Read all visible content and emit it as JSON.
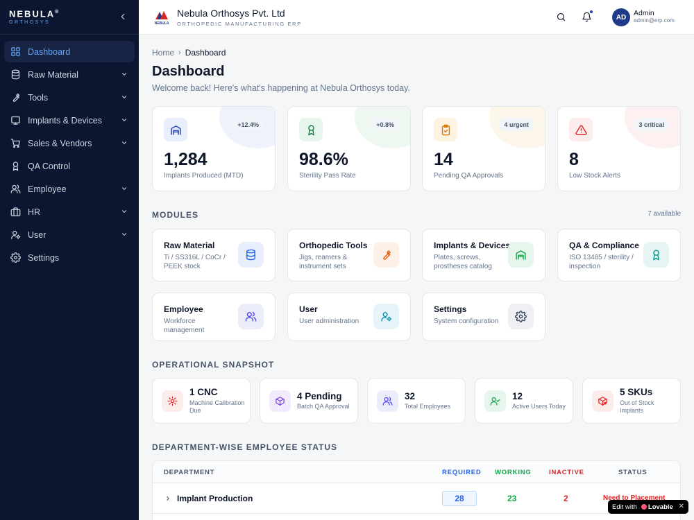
{
  "brand": {
    "name": "NEBULA",
    "mark": "®",
    "sub": "ORTHOSYS"
  },
  "sidebar": {
    "items": [
      {
        "label": "Dashboard",
        "icon": "dashboard-icon",
        "active": true,
        "expandable": false
      },
      {
        "label": "Raw Material",
        "icon": "database-icon",
        "expandable": true
      },
      {
        "label": "Tools",
        "icon": "wrench-icon",
        "expandable": true
      },
      {
        "label": "Implants & Devices",
        "icon": "device-icon",
        "expandable": true
      },
      {
        "label": "Sales & Vendors",
        "icon": "cart-icon",
        "expandable": true
      },
      {
        "label": "QA Control",
        "icon": "award-icon",
        "expandable": false
      },
      {
        "label": "Employee",
        "icon": "users-icon",
        "expandable": true
      },
      {
        "label": "HR",
        "icon": "briefcase-icon",
        "expandable": true
      },
      {
        "label": "User",
        "icon": "user-gear-icon",
        "expandable": true
      },
      {
        "label": "Settings",
        "icon": "gear-icon",
        "expandable": false
      }
    ]
  },
  "header": {
    "company": "Nebula Orthosys Pvt. Ltd",
    "company_sub": "ORTHOPEDIC MANUFACTURING ERP",
    "logo_text": "NEBULA",
    "avatar": "AD",
    "user_name": "Admin",
    "user_email": "admin@erp.com"
  },
  "breadcrumb": {
    "home": "Home",
    "current": "Dashboard"
  },
  "page": {
    "title": "Dashboard",
    "welcome": "Welcome back! Here's what's happening at Nebula Orthosys today."
  },
  "stats": [
    {
      "value": "1,284",
      "label": "Implants Produced (MTD)",
      "badge": "+12.4%",
      "icon": "factory-icon",
      "color": "#1e40af",
      "bg": "#e8eefb",
      "glow": "#eef2fb"
    },
    {
      "value": "98.6%",
      "label": "Sterility Pass Rate",
      "badge": "+0.8%",
      "icon": "award-icon",
      "color": "#15803d",
      "bg": "#e7f6ec",
      "glow": "#eef8f1"
    },
    {
      "value": "14",
      "label": "Pending QA Approvals",
      "badge": "4 urgent",
      "icon": "clipboard-check-icon",
      "color": "#d97706",
      "bg": "#fdf3e0",
      "glow": "#fdf6ea"
    },
    {
      "value": "8",
      "label": "Low Stock Alerts",
      "badge": "3 critical",
      "icon": "alert-triangle-icon",
      "color": "#dc2626",
      "bg": "#fdecec",
      "glow": "#fdf0f0"
    }
  ],
  "modules_section": {
    "title": "MODULES",
    "count": "7 available"
  },
  "modules": [
    {
      "title": "Raw Material",
      "desc": "Ti / SS316L / CoCr / PEEK stock",
      "icon": "database-icon",
      "color": "#2563eb",
      "bg": "#e8eefb"
    },
    {
      "title": "Orthopedic Tools",
      "desc": "Jigs, reamers & instrument sets",
      "icon": "wrench-icon",
      "color": "#ea580c",
      "bg": "#fdf0e6"
    },
    {
      "title": "Implants & Devices",
      "desc": "Plates, screws, prostheses catalog",
      "icon": "factory-icon",
      "color": "#16a34a",
      "bg": "#e7f6ec"
    },
    {
      "title": "QA & Compliance",
      "desc": "ISO 13485 / sterility / inspection",
      "icon": "award-icon",
      "color": "#0d9488",
      "bg": "#e6f5f3"
    },
    {
      "title": "Employee",
      "desc": "Workforce management",
      "icon": "users-icon",
      "color": "#4f46e5",
      "bg": "#ecedfb"
    },
    {
      "title": "User",
      "desc": "User administration",
      "icon": "user-gear-icon",
      "color": "#0891b2",
      "bg": "#e6f4f8"
    },
    {
      "title": "Settings",
      "desc": "System configuration",
      "icon": "gear-icon",
      "color": "#334155",
      "bg": "#eef0f3"
    }
  ],
  "snapshot_section": {
    "title": "OPERATIONAL SNAPSHOT"
  },
  "snapshot": [
    {
      "value": "1 CNC",
      "label": "Machine Calibration Due",
      "icon": "cog-icon",
      "color": "#dc2626",
      "bg": "#fdecec"
    },
    {
      "value": "4 Pending",
      "label": "Batch QA Approval",
      "icon": "box-icon",
      "color": "#7c3aed",
      "bg": "#f1ebfd"
    },
    {
      "value": "32",
      "label": "Total Employees",
      "icon": "users-icon",
      "color": "#4f46e5",
      "bg": "#ecedfb"
    },
    {
      "value": "12",
      "label": "Active Users Today",
      "icon": "user-check-icon",
      "color": "#16a34a",
      "bg": "#e7f6ec"
    },
    {
      "value": "5 SKUs",
      "label": "Out of Stock Implants",
      "icon": "package-x-icon",
      "color": "#dc2626",
      "bg": "#fdecec"
    }
  ],
  "department_section": {
    "title": "DEPARTMENT-WISE EMPLOYEE STATUS"
  },
  "table": {
    "headers": {
      "department": "DEPARTMENT",
      "required": "REQUIRED",
      "working": "WORKING",
      "inactive": "INACTIVE",
      "status": "STATUS"
    },
    "header_colors": {
      "required": "#2563eb",
      "working": "#16a34a",
      "inactive": "#dc2626",
      "status": "#475569"
    },
    "rows": [
      {
        "department": "Implant Production",
        "required": "28",
        "working": "23",
        "inactive": "2",
        "status": "Need to Placement"
      }
    ]
  },
  "badge": {
    "edit_with": "Edit with",
    "brand": "Lovable",
    "close": "✕"
  }
}
